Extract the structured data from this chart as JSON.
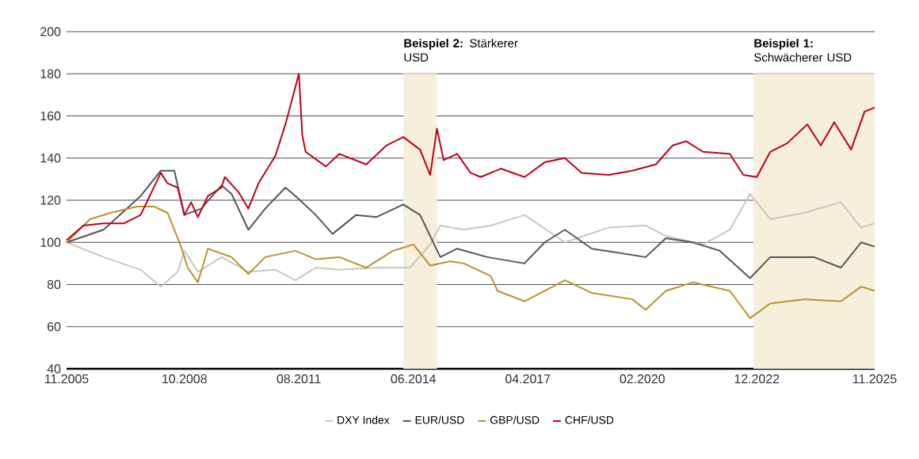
{
  "chart_data": {
    "type": "line",
    "xlim": [
      "2005-11",
      "2025-11"
    ],
    "xticks": [
      {
        "value": "2005-11",
        "label": "11.2005"
      },
      {
        "value": "2008-10",
        "label": "10.2008"
      },
      {
        "value": "2011-08",
        "label": "08.2011"
      },
      {
        "value": "2014-06",
        "label": "06.2014"
      },
      {
        "value": "2017-04",
        "label": "04.2017"
      },
      {
        "value": "2020-02",
        "label": "02.2020"
      },
      {
        "value": "2022-12",
        "label": "12.2022"
      },
      {
        "value": "2025-11",
        "label": "11.2025"
      }
    ],
    "ylim": [
      40,
      200
    ],
    "yticks": [
      40,
      60,
      80,
      100,
      120,
      140,
      160,
      180,
      200
    ],
    "grid": "y",
    "legend": "bottom",
    "bands": [
      {
        "axis": "x",
        "from": "2014-03",
        "to": "2015-01",
        "label": "**Beispiel 2:** Stärkerer USD",
        "color": "#f5efdc"
      },
      {
        "axis": "x",
        "from": "2022-11",
        "to": "2025-11",
        "label": "**Beispiel 1:** Schwächerer USD",
        "color": "#f5efdc"
      }
    ],
    "series": [
      {
        "name": "DXY Index",
        "color": "#c8c8be",
        "x": [
          "2005-11",
          "2006-10",
          "2007-09",
          "2008-03",
          "2008-08",
          "2008-10",
          "2009-02",
          "2009-09",
          "2010-05",
          "2011-01",
          "2011-07",
          "2012-01",
          "2012-08",
          "2013-07",
          "2014-05",
          "2014-11",
          "2015-02",
          "2015-09",
          "2016-05",
          "2017-03",
          "2018-03",
          "2019-04",
          "2020-03",
          "2020-09",
          "2021-08",
          "2022-04",
          "2022-10",
          "2023-04",
          "2024-02",
          "2025-01",
          "2025-07",
          "2025-11"
        ],
        "values": [
          100,
          93,
          87,
          79,
          86,
          96,
          86,
          93,
          86,
          87,
          82,
          88,
          87,
          88,
          88,
          99,
          108,
          106,
          108,
          113,
          100,
          107,
          108,
          103,
          99,
          106,
          123,
          111,
          114,
          119,
          107,
          109
        ]
      },
      {
        "name": "EUR/USD",
        "color": "#555555",
        "x": [
          "2005-11",
          "2006-10",
          "2007-09",
          "2008-03",
          "2008-07",
          "2008-10",
          "2009-03",
          "2009-09",
          "2009-12",
          "2010-05",
          "2010-10",
          "2011-04",
          "2011-07",
          "2012-01",
          "2012-06",
          "2013-01",
          "2013-07",
          "2014-03",
          "2014-08",
          "2015-02",
          "2015-07",
          "2016-04",
          "2017-03",
          "2017-09",
          "2018-03",
          "2018-11",
          "2020-03",
          "2020-09",
          "2021-05",
          "2022-01",
          "2022-10",
          "2023-04",
          "2024-05",
          "2025-01",
          "2025-07",
          "2025-11"
        ],
        "values": [
          100,
          106,
          122,
          134,
          134,
          113,
          116,
          127,
          123,
          106,
          116,
          126,
          122,
          113,
          104,
          113,
          112,
          118,
          113,
          93,
          97,
          93,
          90,
          100,
          106,
          97,
          93,
          102,
          100,
          96,
          83,
          93,
          93,
          88,
          100,
          98
        ]
      },
      {
        "name": "GBP/USD",
        "color": "#b8922e",
        "x": [
          "2005-11",
          "2006-06",
          "2006-12",
          "2007-08",
          "2008-01",
          "2008-05",
          "2008-09",
          "2008-11",
          "2009-02",
          "2009-05",
          "2009-12",
          "2010-05",
          "2010-10",
          "2011-07",
          "2012-01",
          "2012-08",
          "2013-04",
          "2013-12",
          "2014-06",
          "2014-11",
          "2015-05",
          "2015-09",
          "2016-05",
          "2016-07",
          "2017-03",
          "2018-03",
          "2018-11",
          "2019-11",
          "2020-03",
          "2020-09",
          "2021-05",
          "2022-04",
          "2022-10",
          "2023-04",
          "2024-02",
          "2025-01",
          "2025-07",
          "2025-11"
        ],
        "values": [
          100,
          111,
          114,
          117,
          117,
          114,
          98,
          88,
          81,
          97,
          93,
          85,
          93,
          96,
          92,
          93,
          88,
          96,
          99,
          89,
          91,
          90,
          84,
          77,
          72,
          82,
          76,
          73,
          68,
          77,
          81,
          77,
          64,
          71,
          73,
          72,
          79,
          77
        ]
      },
      {
        "name": "CHF/USD",
        "color": "#c0001a",
        "x": [
          "2005-11",
          "2006-04",
          "2006-10",
          "2007-04",
          "2007-09",
          "2008-03",
          "2008-05",
          "2008-08",
          "2008-10",
          "2008-12",
          "2009-02",
          "2009-05",
          "2009-09",
          "2009-10",
          "2010-02",
          "2010-05",
          "2010-08",
          "2011-01",
          "2011-04",
          "2011-08",
          "2011-09",
          "2011-10",
          "2012-04",
          "2012-08",
          "2013-04",
          "2013-10",
          "2014-03",
          "2014-08",
          "2014-11",
          "2015-01",
          "2015-03",
          "2015-07",
          "2015-11",
          "2016-02",
          "2016-08",
          "2017-03",
          "2017-09",
          "2018-03",
          "2018-08",
          "2019-04",
          "2019-11",
          "2020-06",
          "2020-11",
          "2021-03",
          "2021-08",
          "2022-04",
          "2022-08",
          "2022-12",
          "2023-04",
          "2023-09",
          "2024-03",
          "2024-07",
          "2024-11",
          "2025-04",
          "2025-08",
          "2025-11"
        ],
        "values": [
          101,
          108,
          109,
          109,
          113,
          133,
          128,
          126,
          113,
          119,
          112,
          122,
          126,
          131,
          124,
          116,
          128,
          141,
          156,
          180,
          151,
          143,
          136,
          142,
          137,
          146,
          150,
          144,
          132,
          154,
          139,
          142,
          133,
          131,
          135,
          131,
          138,
          140,
          133,
          132,
          134,
          137,
          146,
          148,
          143,
          142,
          132,
          131,
          143,
          147,
          156,
          146,
          157,
          144,
          162,
          164
        ]
      }
    ]
  }
}
